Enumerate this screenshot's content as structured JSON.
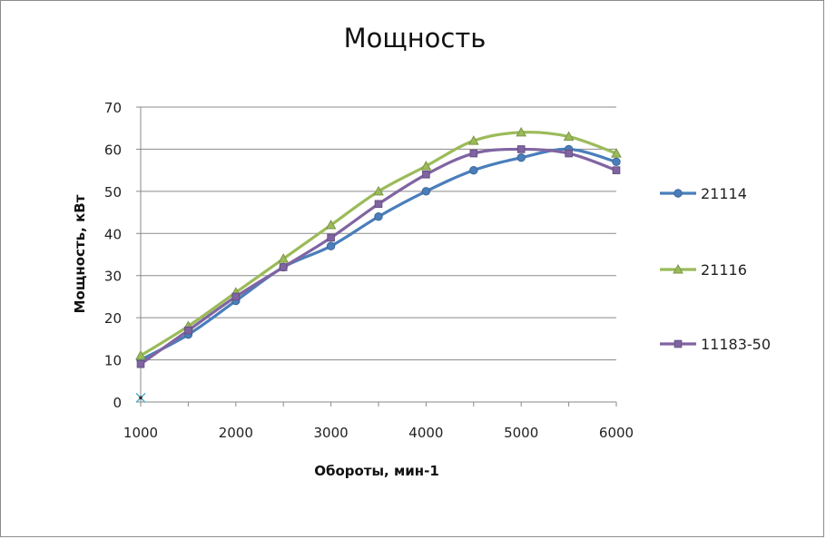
{
  "chart_data": {
    "type": "line",
    "title": "Мощность",
    "xlabel": "Обороты, мин-1",
    "ylabel": "Мощность, кВт",
    "x": [
      1000,
      1500,
      2000,
      2500,
      3000,
      3500,
      4000,
      4500,
      5000,
      5500,
      6000
    ],
    "xlim": [
      1000,
      6000
    ],
    "ylim": [
      0,
      70
    ],
    "x_ticks": [
      1000,
      2000,
      3000,
      4000,
      5000,
      6000
    ],
    "y_ticks": [
      0,
      10,
      20,
      30,
      40,
      50,
      60,
      70
    ],
    "grid": "horizontal",
    "legend_position": "right",
    "extra_marker": {
      "x": 1000,
      "y": 1,
      "shape": "x"
    },
    "series": [
      {
        "name": "21114",
        "color": "#4a7ebb",
        "marker": "circle",
        "values": [
          10,
          16,
          24,
          32,
          37,
          44,
          50,
          55,
          58,
          60,
          57
        ]
      },
      {
        "name": "21116",
        "color": "#9bbb59",
        "marker": "triangle",
        "values": [
          11,
          18,
          26,
          34,
          42,
          50,
          56,
          62,
          64,
          63,
          59
        ]
      },
      {
        "name": "11183-50",
        "color": "#8064a2",
        "marker": "square",
        "values": [
          9,
          17,
          25,
          32,
          39,
          47,
          54,
          59,
          60,
          59,
          55
        ]
      }
    ]
  }
}
